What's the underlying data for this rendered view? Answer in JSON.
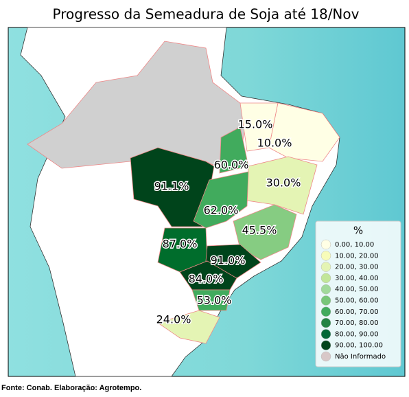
{
  "title": "Progresso da Semeadura de Soja até 18/Nov",
  "region_labels": [
    "15.0%",
    "10.0%",
    "60.0%",
    "91.1%",
    "30.0%",
    "62.0%",
    "45.5%",
    "87.0%",
    "91.0%",
    "84.0%",
    "53.0%",
    "24.0%"
  ],
  "legend": {
    "title": "%",
    "items": [
      "0.00,  10.00",
      "10.00,  20.00",
      "20.00,  30.00",
      "30.00,  40.00",
      "40.00,  50.00",
      "50.00,  60.00",
      "60.00,  70.00",
      "70.00,  80.00",
      "80.00,  90.00",
      "90.00, 100.00",
      "Não Informado"
    ]
  },
  "source": "Fonte: Conab. Elaboração: Agrotempo."
}
